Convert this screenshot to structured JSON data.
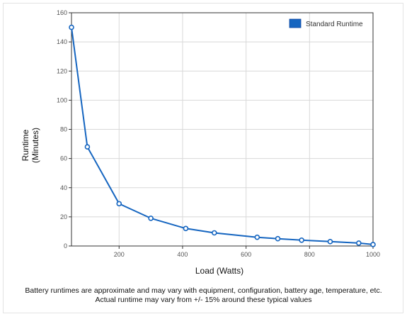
{
  "chart_data": {
    "type": "line",
    "xlabel": "Load (Watts)",
    "ylabel": [
      "Runtime",
      "(Minutes)"
    ],
    "xlim": [
      50,
      1000
    ],
    "ylim": [
      0,
      160
    ],
    "x_ticks": [
      200,
      400,
      600,
      800,
      1000
    ],
    "y_ticks": [
      0,
      20,
      40,
      60,
      80,
      100,
      120,
      140,
      160
    ],
    "grid": true,
    "legend_position": "top-right",
    "series": [
      {
        "name": "Standard Runtime",
        "color": "#1565c0",
        "points": [
          {
            "x": 50,
            "y": 150
          },
          {
            "x": 100,
            "y": 68
          },
          {
            "x": 200,
            "y": 29
          },
          {
            "x": 300,
            "y": 19
          },
          {
            "x": 410,
            "y": 12
          },
          {
            "x": 500,
            "y": 9
          },
          {
            "x": 635,
            "y": 6
          },
          {
            "x": 700,
            "y": 5
          },
          {
            "x": 775,
            "y": 4
          },
          {
            "x": 865,
            "y": 3
          },
          {
            "x": 955,
            "y": 2
          },
          {
            "x": 1000,
            "y": 1
          }
        ]
      }
    ]
  },
  "notes": {
    "line1": "Battery runtimes are approximate and may vary with equipment, configuration, battery age, temperature, etc.",
    "line2": "Actual runtime may vary from +/- 15% around these typical values"
  }
}
